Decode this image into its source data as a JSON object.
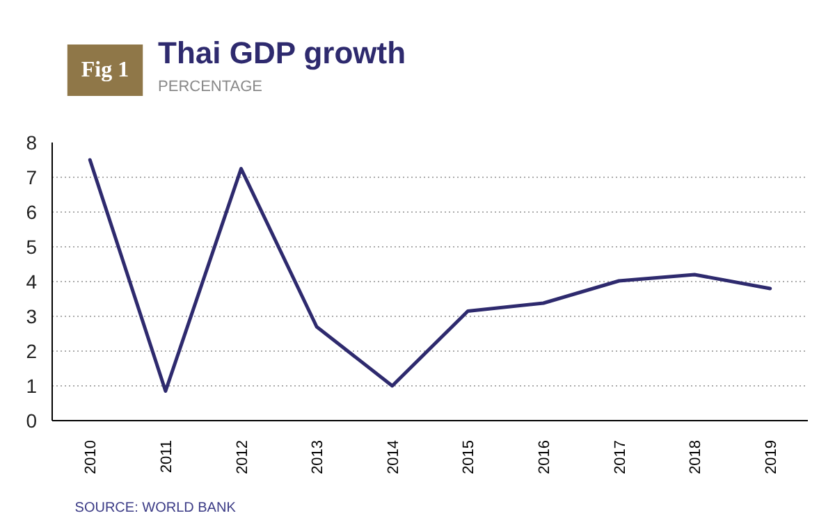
{
  "chart_data": {
    "type": "line",
    "title": "Thai GDP growth",
    "subtitle": "PERCENTAGE",
    "annotations": [
      "Fig 1",
      "SOURCE: WORLD BANK"
    ],
    "categories": [
      "2010",
      "2011",
      "2012",
      "2013",
      "2014",
      "2015",
      "2016",
      "2017",
      "2018",
      "2019"
    ],
    "series": [
      {
        "color": "#2e2a6e",
        "values": [
          7.5,
          0.85,
          7.25,
          2.7,
          1.0,
          3.15,
          3.38,
          4.02,
          4.2,
          3.8
        ]
      }
    ],
    "ylim": [
      0,
      8
    ],
    "yticks": [
      0,
      1,
      2,
      3,
      4,
      5,
      6,
      7,
      8
    ],
    "grid": "y",
    "line_style": "solid",
    "marker": "none"
  }
}
